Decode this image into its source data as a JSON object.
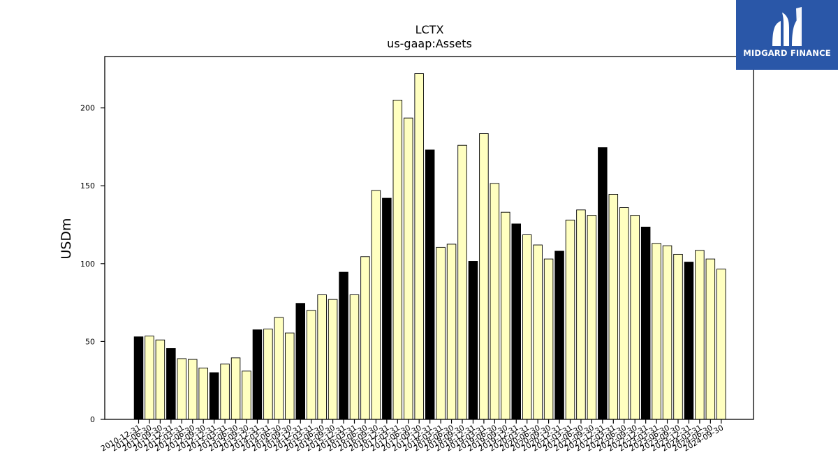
{
  "brand": {
    "name": "MIDGARD FINANCE",
    "color": "#2a57a8"
  },
  "chart_data": {
    "type": "bar",
    "title": "LCTX",
    "subtitle": "us-gaap:Assets",
    "xlabel": "",
    "ylabel": "USDm",
    "ylim": [
      0,
      233
    ],
    "yticks": [
      0,
      50,
      100,
      150,
      200
    ],
    "grid": false,
    "legend": "none",
    "colors": {
      "annual": "#000000",
      "quarterly": "#ffffc0",
      "edge": "#000000"
    },
    "categories": [
      "2010-12-31",
      "2011-06-30",
      "2011-09-30",
      "2011-12-31",
      "2012-03-31",
      "2012-06-30",
      "2012-09-30",
      "2012-12-31",
      "2013-03-31",
      "2013-06-30",
      "2013-09-30",
      "2013-12-31",
      "2014-03-31",
      "2014-06-30",
      "2014-09-30",
      "2014-12-31",
      "2015-03-31",
      "2015-06-30",
      "2015-09-30",
      "2015-12-31",
      "2016-03-31",
      "2016-06-30",
      "2016-09-30",
      "2016-12-31",
      "2017-03-31",
      "2017-06-30",
      "2017-09-30",
      "2017-12-31",
      "2018-03-31",
      "2018-06-30",
      "2018-09-30",
      "2018-12-31",
      "2019-03-31",
      "2019-06-30",
      "2019-09-30",
      "2019-12-31",
      "2020-03-31",
      "2020-06-30",
      "2020-09-30",
      "2020-12-31",
      "2021-03-31",
      "2021-06-30",
      "2021-09-30",
      "2021-12-31",
      "2022-03-31",
      "2022-06-30",
      "2022-09-30",
      "2022-12-31",
      "2023-03-31",
      "2023-06-30",
      "2023-09-30",
      "2023-12-31",
      "2024-03-31",
      "2024-06-30",
      "2024-09-30"
    ],
    "values": [
      53,
      53.5,
      51,
      45.5,
      39,
      38.5,
      33,
      30,
      35.5,
      39.5,
      31,
      57.5,
      58,
      65.5,
      55.5,
      74.5,
      70,
      80,
      77,
      94.5,
      80,
      104.5,
      147,
      142,
      205,
      193.5,
      222,
      173,
      110.5,
      112.5,
      176,
      101.5,
      183.5,
      151.5,
      133,
      125.5,
      118.5,
      112,
      103,
      108,
      128,
      134.5,
      131,
      174.5,
      144.5,
      136,
      131,
      123.5,
      113,
      111.5,
      106,
      101,
      108.5,
      103,
      96.5
    ],
    "annual_flags": [
      true,
      false,
      false,
      true,
      false,
      false,
      false,
      true,
      false,
      false,
      false,
      true,
      false,
      false,
      false,
      true,
      false,
      false,
      false,
      true,
      false,
      false,
      false,
      true,
      false,
      false,
      false,
      true,
      false,
      false,
      false,
      true,
      false,
      false,
      false,
      true,
      false,
      false,
      false,
      true,
      false,
      false,
      false,
      true,
      false,
      false,
      false,
      true,
      false,
      false,
      false,
      true,
      false,
      false,
      false
    ]
  }
}
